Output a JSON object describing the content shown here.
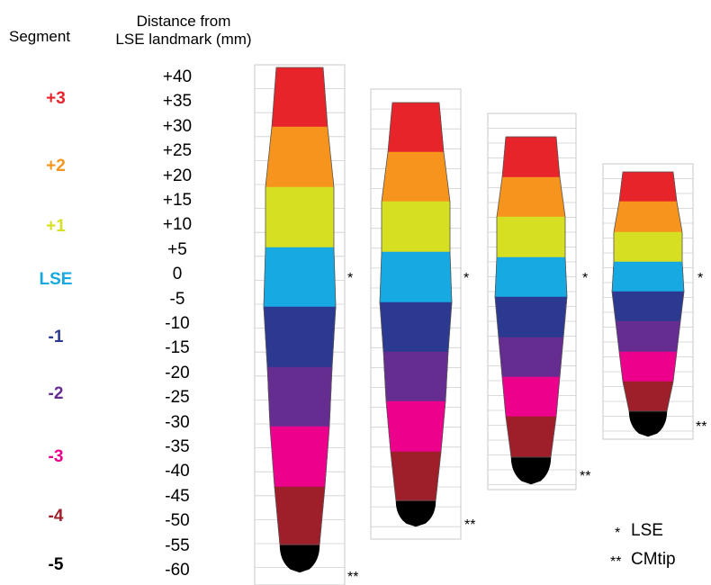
{
  "headers": {
    "segment": "Segment",
    "distance_line1": "Distance from",
    "distance_line2": "LSE landmark (mm)"
  },
  "segments": [
    {
      "label": "+3",
      "color": "#e8242b"
    },
    {
      "label": "+2",
      "color": "#f7941d"
    },
    {
      "label": "+1",
      "color": "#d7df23"
    },
    {
      "label": "LSE",
      "color": "#17a9e1"
    },
    {
      "label": "-1",
      "color": "#2b3990"
    },
    {
      "label": "-2",
      "color": "#662d91"
    },
    {
      "label": "-3",
      "color": "#ec008c"
    },
    {
      "label": "-4",
      "color": "#9e1f2a"
    },
    {
      "label": "-5",
      "color": "#000000"
    }
  ],
  "distance_ticks": [
    "+40",
    "+35",
    "+30",
    "+25",
    "+20",
    "+15",
    "+10",
    "+5",
    "0",
    "-5",
    "-10",
    "-15",
    "-20",
    "-25",
    "-30",
    "-35",
    "-40",
    "-45",
    "-50",
    "-55",
    "-60"
  ],
  "markers": {
    "lse": "*",
    "cmtip": "**"
  },
  "legend": [
    {
      "mark": "*",
      "text": "LSE"
    },
    {
      "mark": "**",
      "text": "CMtip"
    }
  ]
}
